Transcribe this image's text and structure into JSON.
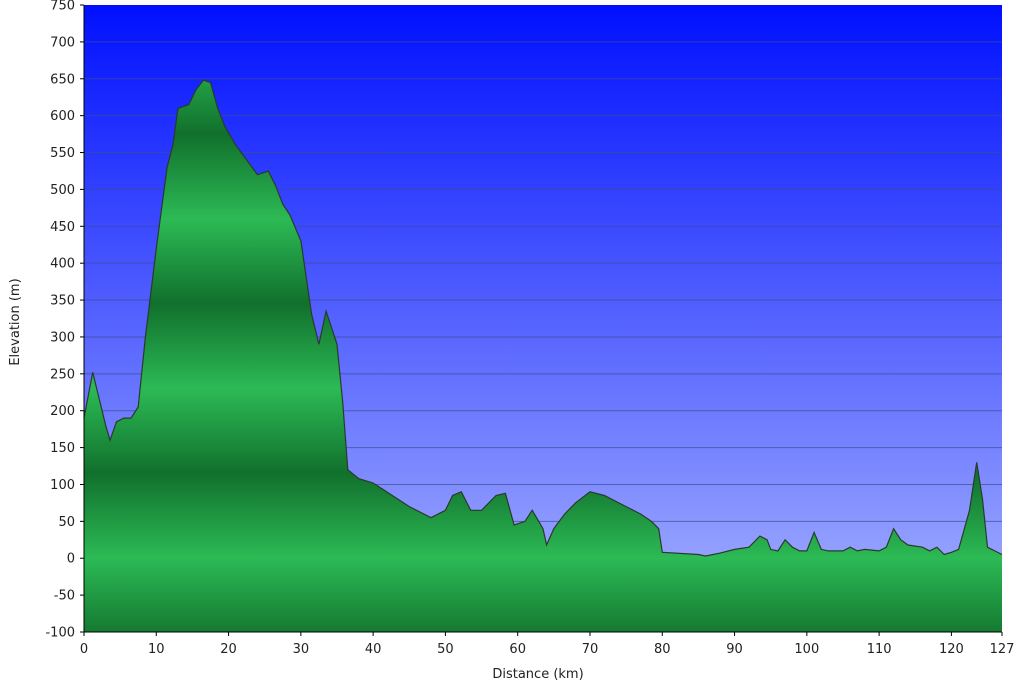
{
  "chart_data": {
    "type": "area",
    "title": "",
    "xlabel": "Distance  (km)",
    "ylabel": "Elevation (m)",
    "xlim": [
      0,
      127
    ],
    "ylim": [
      -100,
      750
    ],
    "grid": true,
    "legend": "none",
    "x_ticks": [
      "0",
      "10",
      "20",
      "30",
      "40",
      "50",
      "60",
      "70",
      "80",
      "90",
      "100",
      "110",
      "120",
      "127"
    ],
    "y_ticks": [
      "750",
      "700",
      "650",
      "600",
      "550",
      "500",
      "450",
      "400",
      "350",
      "300",
      "250",
      "200",
      "150",
      "100",
      "50",
      "0",
      "-50",
      "-100"
    ],
    "colors": {
      "sky_top": "#0010ff",
      "sky_bottom": "#a8b4ff",
      "fill_light": "#2cba55",
      "fill_dark": "#11702c",
      "outline": "#2b3a2b",
      "gridline": "#3f4a8f"
    },
    "series": [
      {
        "x": [
          0,
          1.2,
          2,
          3,
          3.6,
          4.5,
          5.5,
          6.5,
          7.5,
          8.5,
          10,
          11.5,
          12.3,
          13,
          14.5,
          15.5,
          16.5,
          17.5,
          18.5,
          19.5,
          21,
          22.5,
          24,
          25.5,
          26.5,
          27.5,
          28.5,
          30,
          31.5,
          32.5,
          33.5,
          35,
          35.8,
          36.5,
          38,
          40,
          45,
          48,
          50,
          51,
          52.2,
          53.5,
          55,
          57,
          58.3,
          59.5,
          61,
          62,
          63.5,
          64,
          65,
          66.5,
          68,
          70,
          72,
          75,
          77,
          78.5,
          79.5,
          80,
          85,
          86,
          88,
          90,
          92,
          93.5,
          94.5,
          95,
          96,
          97,
          98,
          99,
          100,
          101,
          102,
          103,
          105,
          106,
          107,
          108,
          110,
          111,
          112,
          113,
          114,
          116,
          117,
          118,
          119,
          120,
          121,
          122.5,
          123.5,
          124.3,
          125,
          126,
          127
        ],
        "y": [
          190,
          252,
          220,
          180,
          160,
          185,
          190,
          190,
          205,
          300,
          420,
          530,
          560,
          610,
          615,
          635,
          648,
          645,
          610,
          585,
          560,
          540,
          520,
          525,
          505,
          480,
          465,
          430,
          330,
          290,
          335,
          290,
          210,
          120,
          108,
          102,
          70,
          55,
          65,
          85,
          90,
          65,
          65,
          85,
          88,
          45,
          50,
          65,
          40,
          18,
          40,
          60,
          75,
          90,
          85,
          70,
          60,
          50,
          40,
          8,
          5,
          3,
          7,
          12,
          15,
          30,
          25,
          12,
          10,
          25,
          15,
          10,
          10,
          35,
          12,
          10,
          10,
          15,
          10,
          12,
          10,
          15,
          40,
          25,
          18,
          15,
          10,
          15,
          5,
          8,
          12,
          65,
          130,
          80,
          15,
          10,
          5
        ]
      }
    ]
  }
}
